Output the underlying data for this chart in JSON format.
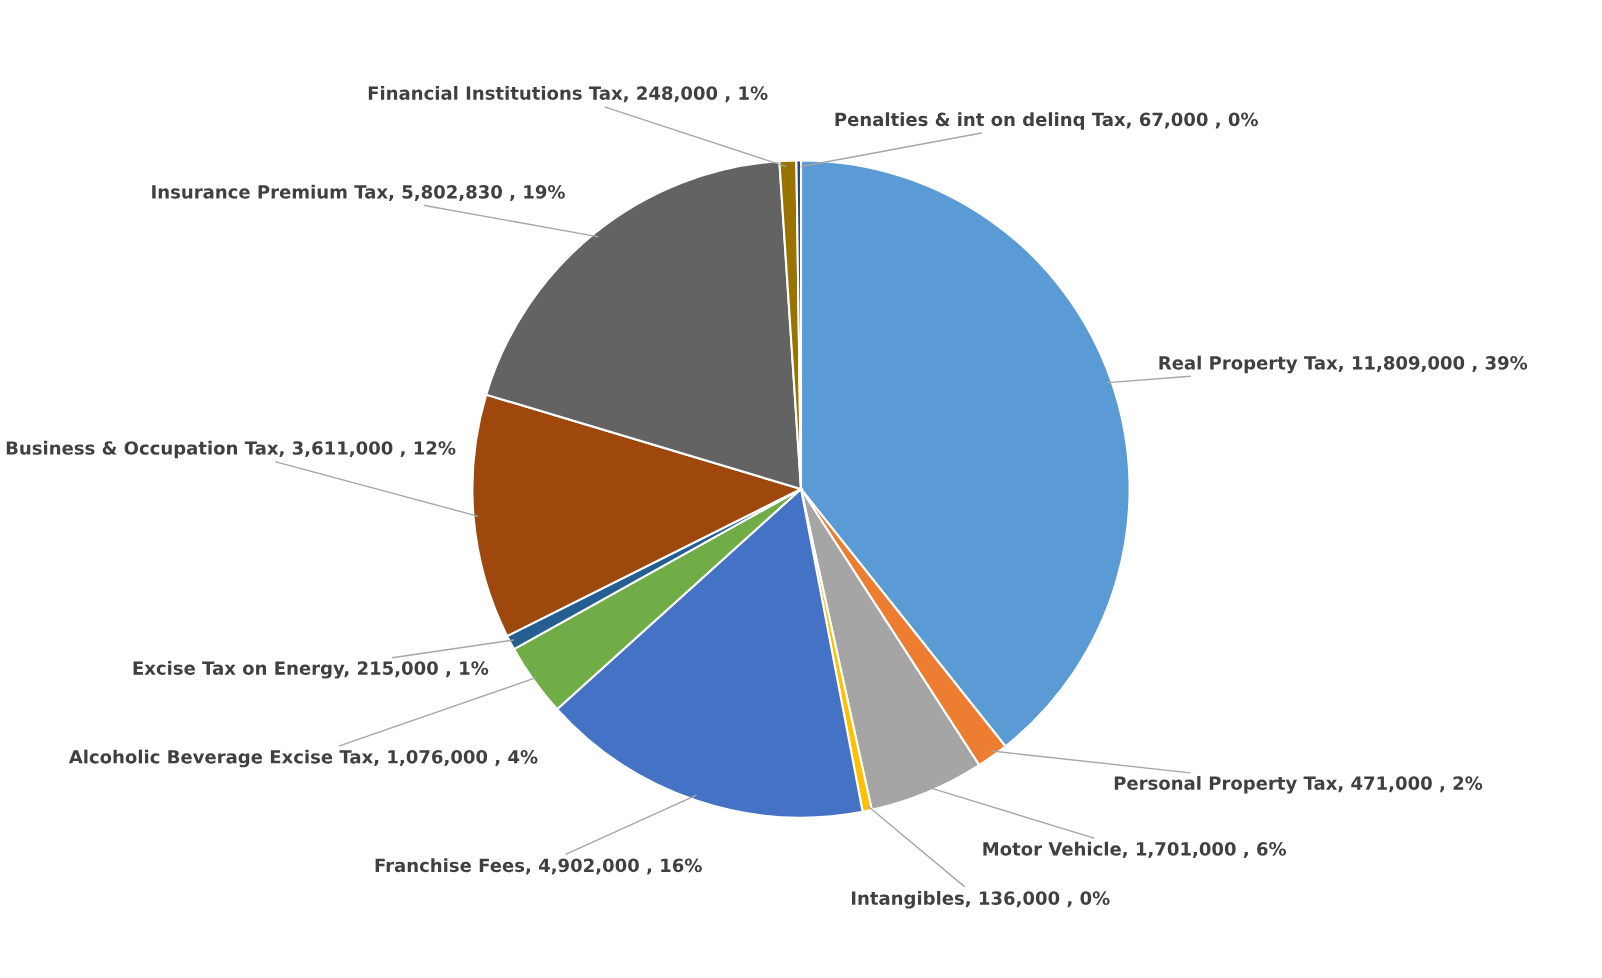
{
  "chart_data": {
    "type": "pie",
    "categories": [
      "Real Property Tax",
      "Personal Property Tax",
      "Motor Vehicle",
      "Intangibles",
      "Franchise Fees",
      "Alcoholic Beverage Excise Tax",
      "Excise Tax on Energy",
      "Business & Occupation Tax",
      "Insurance Premium Tax",
      "Financial Institutions Tax",
      "Penalties & int on delinq Tax"
    ],
    "values": [
      11809000,
      471000,
      1701000,
      136000,
      4902000,
      1076000,
      215000,
      3611000,
      5802830,
      248000,
      67000
    ],
    "colors": [
      "#5b9bd5",
      "#ed7d31",
      "#a5a5a5",
      "#ffc000",
      "#4472c4",
      "#70ad47",
      "#255e91",
      "#9e480e",
      "#636363",
      "#997300",
      "#264478"
    ],
    "value_labels": [
      ", 11,809,000 , 39%",
      ", 471,000 , 2%",
      ", 1,701,000 , 6%",
      ", 136,000 , 0%",
      ", 4,902,000 , 16%",
      ", 1,076,000 , 4%",
      ", 215,000 , 1%",
      ", 3,611,000 , 12%",
      ", 5,802,830 , 19%",
      ", 248,000 , 1%",
      ", 67,000 , 0%"
    ]
  }
}
